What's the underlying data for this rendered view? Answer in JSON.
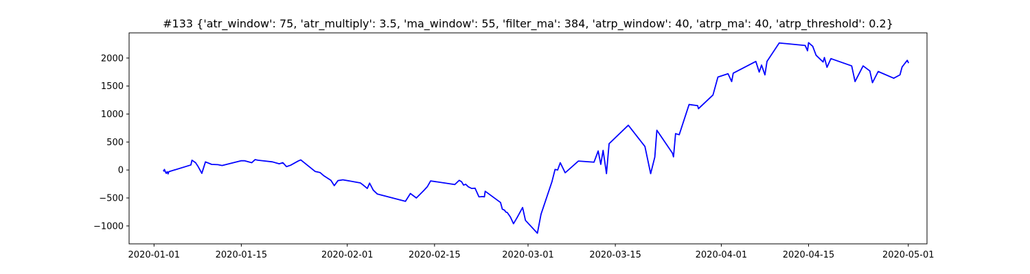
{
  "chart_data": {
    "type": "line",
    "title": "#133 {'atr_window': 75, 'atr_multiply': 3.5, 'ma_window': 55, 'filter_ma': 384, 'atrp_window': 40, 'atrp_ma': 40, 'atrp_threshold': 0.2}",
    "xlabel": "",
    "ylabel": "",
    "xlim": [
      "2019-12-28",
      "2020-05-04"
    ],
    "ylim": [
      -1320,
      2450
    ],
    "grid": false,
    "legend": "none",
    "line_color": "#0000ff",
    "x_ticks": [
      {
        "date": "2020-01-01",
        "label": "2020-01-01"
      },
      {
        "date": "2020-01-15",
        "label": "2020-01-15"
      },
      {
        "date": "2020-02-01",
        "label": "2020-02-01"
      },
      {
        "date": "2020-02-15",
        "label": "2020-02-15"
      },
      {
        "date": "2020-03-01",
        "label": "2020-03-01"
      },
      {
        "date": "2020-03-15",
        "label": "2020-03-15"
      },
      {
        "date": "2020-04-01",
        "label": "2020-04-01"
      },
      {
        "date": "2020-04-15",
        "label": "2020-04-15"
      },
      {
        "date": "2020-05-01",
        "label": "2020-05-01"
      }
    ],
    "y_ticks": [
      {
        "value": -1000,
        "label": "−1000"
      },
      {
        "value": -500,
        "label": "−500"
      },
      {
        "value": 0,
        "label": "0"
      },
      {
        "value": 500,
        "label": "500"
      },
      {
        "value": 1000,
        "label": "1000"
      },
      {
        "value": 1500,
        "label": "1500"
      },
      {
        "value": 2000,
        "label": "2000"
      }
    ],
    "series": [
      {
        "points": [
          [
            "2020-01-02T12:00",
            0
          ],
          [
            "2020-01-02T14:00",
            -20
          ],
          [
            "2020-01-02T16:00",
            10
          ],
          [
            "2020-01-02T20:00",
            -35
          ],
          [
            "2020-01-02T23:00",
            -60
          ],
          [
            "2020-01-03T03:00",
            -30
          ],
          [
            "2020-01-03T06:00",
            -70
          ],
          [
            "2020-01-03T09:00",
            -30
          ],
          [
            "2020-01-06T22:00",
            90
          ],
          [
            "2020-01-07T02:00",
            175
          ],
          [
            "2020-01-07T16:00",
            130
          ],
          [
            "2020-01-08T02:00",
            60
          ],
          [
            "2020-01-08T16:00",
            -60
          ],
          [
            "2020-01-09T06:00",
            145
          ],
          [
            "2020-01-10T06:00",
            100
          ],
          [
            "2020-01-11T06:00",
            95
          ],
          [
            "2020-01-11T22:00",
            80
          ],
          [
            "2020-01-15T00:00",
            165
          ],
          [
            "2020-01-15T12:00",
            165
          ],
          [
            "2020-01-16T16:00",
            130
          ],
          [
            "2020-01-17T05:00",
            185
          ],
          [
            "2020-01-17T16:00",
            175
          ],
          [
            "2020-01-20T00:00",
            145
          ],
          [
            "2020-01-21T02:00",
            110
          ],
          [
            "2020-01-21T16:00",
            130
          ],
          [
            "2020-01-22T06:00",
            60
          ],
          [
            "2020-01-22T22:00",
            85
          ],
          [
            "2020-01-24T03:00",
            160
          ],
          [
            "2020-01-24T13:00",
            180
          ],
          [
            "2020-01-26T20:00",
            -25
          ],
          [
            "2020-01-27T15:00",
            -45
          ],
          [
            "2020-01-28T05:00",
            -100
          ],
          [
            "2020-01-29T09:00",
            -185
          ],
          [
            "2020-01-29T22:00",
            -280
          ],
          [
            "2020-01-30T12:00",
            -190
          ],
          [
            "2020-01-31T07:00",
            -175
          ],
          [
            "2020-02-03T02:00",
            -230
          ],
          [
            "2020-02-03T15:00",
            -275
          ],
          [
            "2020-02-04T05:00",
            -330
          ],
          [
            "2020-02-04T14:00",
            -235
          ],
          [
            "2020-02-05T04:00",
            -360
          ],
          [
            "2020-02-05T20:00",
            -430
          ],
          [
            "2020-02-10T08:00",
            -560
          ],
          [
            "2020-02-11T03:00",
            -420
          ],
          [
            "2020-02-12T02:00",
            -500
          ],
          [
            "2020-02-13T06:00",
            -370
          ],
          [
            "2020-02-13T20:00",
            -300
          ],
          [
            "2020-02-14T09:00",
            -195
          ],
          [
            "2020-02-18T06:00",
            -260
          ],
          [
            "2020-02-18T23:00",
            -185
          ],
          [
            "2020-02-19T08:00",
            -210
          ],
          [
            "2020-02-19T16:00",
            -270
          ],
          [
            "2020-02-20T00:00",
            -255
          ],
          [
            "2020-02-20T10:00",
            -300
          ],
          [
            "2020-02-20T23:00",
            -330
          ],
          [
            "2020-02-21T12:00",
            -325
          ],
          [
            "2020-02-22T03:00",
            -480
          ],
          [
            "2020-02-22T17:00",
            -475
          ],
          [
            "2020-02-23T00:00",
            -480
          ],
          [
            "2020-02-23T03:00",
            -380
          ],
          [
            "2020-02-25T14:00",
            -580
          ],
          [
            "2020-02-25T21:00",
            -700
          ],
          [
            "2020-02-26T06:00",
            -720
          ],
          [
            "2020-02-26T10:00",
            -750
          ],
          [
            "2020-02-26T16:00",
            -760
          ],
          [
            "2020-02-27T04:00",
            -840
          ],
          [
            "2020-02-27T16:00",
            -960
          ],
          [
            "2020-02-28T06:00",
            -850
          ],
          [
            "2020-02-29T03:00",
            -670
          ],
          [
            "2020-02-29T14:00",
            -900
          ],
          [
            "2020-03-02T12:00",
            -1130
          ],
          [
            "2020-03-03T02:00",
            -790
          ],
          [
            "2020-03-04T20:00",
            -210
          ],
          [
            "2020-03-05T08:00",
            10
          ],
          [
            "2020-03-05T18:00",
            0
          ],
          [
            "2020-03-06T04:00",
            130
          ],
          [
            "2020-03-06T23:00",
            -50
          ],
          [
            "2020-03-09T02:00",
            160
          ],
          [
            "2020-03-11T14:00",
            140
          ],
          [
            "2020-03-12T06:00",
            340
          ],
          [
            "2020-03-12T16:00",
            100
          ],
          [
            "2020-03-13T01:00",
            350
          ],
          [
            "2020-03-13T14:00",
            -65
          ],
          [
            "2020-03-14T00:00",
            470
          ],
          [
            "2020-03-17T02:00",
            800
          ],
          [
            "2020-03-19T18:00",
            420
          ],
          [
            "2020-03-20T16:00",
            -65
          ],
          [
            "2020-03-21T08:00",
            230
          ],
          [
            "2020-03-21T16:00",
            710
          ],
          [
            "2020-03-24T04:00",
            300
          ],
          [
            "2020-03-24T08:00",
            235
          ],
          [
            "2020-03-24T16:00",
            650
          ],
          [
            "2020-03-25T06:00",
            630
          ],
          [
            "2020-03-26T20:00",
            1170
          ],
          [
            "2020-03-28T05:00",
            1150
          ],
          [
            "2020-03-28T08:00",
            1095
          ],
          [
            "2020-03-30T16:00",
            1340
          ],
          [
            "2020-03-31T11:00",
            1660
          ],
          [
            "2020-04-02T02:00",
            1720
          ],
          [
            "2020-04-02T16:00",
            1580
          ],
          [
            "2020-04-02T22:00",
            1730
          ],
          [
            "2020-04-06T13:00",
            1940
          ],
          [
            "2020-04-07T02:00",
            1750
          ],
          [
            "2020-04-07T11:00",
            1875
          ],
          [
            "2020-04-08T00:00",
            1700
          ],
          [
            "2020-04-08T08:00",
            1940
          ],
          [
            "2020-04-10T07:00",
            2270
          ],
          [
            "2020-04-14T11:00",
            2225
          ],
          [
            "2020-04-14T20:00",
            2130
          ],
          [
            "2020-04-15T00:00",
            2275
          ],
          [
            "2020-04-15T16:00",
            2210
          ],
          [
            "2020-04-16T05:00",
            2050
          ],
          [
            "2020-04-17T08:00",
            1930
          ],
          [
            "2020-04-17T13:00",
            2010
          ],
          [
            "2020-04-17T23:00",
            1835
          ],
          [
            "2020-04-18T14:00",
            1990
          ],
          [
            "2020-04-21T22:00",
            1860
          ],
          [
            "2020-04-22T11:00",
            1580
          ],
          [
            "2020-04-23T18:00",
            1860
          ],
          [
            "2020-04-24T20:00",
            1770
          ],
          [
            "2020-04-25T06:00",
            1560
          ],
          [
            "2020-04-26T04:00",
            1760
          ],
          [
            "2020-04-28T16:00",
            1640
          ],
          [
            "2020-04-29T16:00",
            1700
          ],
          [
            "2020-04-30T00:00",
            1840
          ],
          [
            "2020-04-30T20:00",
            1960
          ],
          [
            "2020-05-01T01:00",
            1910
          ]
        ]
      }
    ]
  }
}
